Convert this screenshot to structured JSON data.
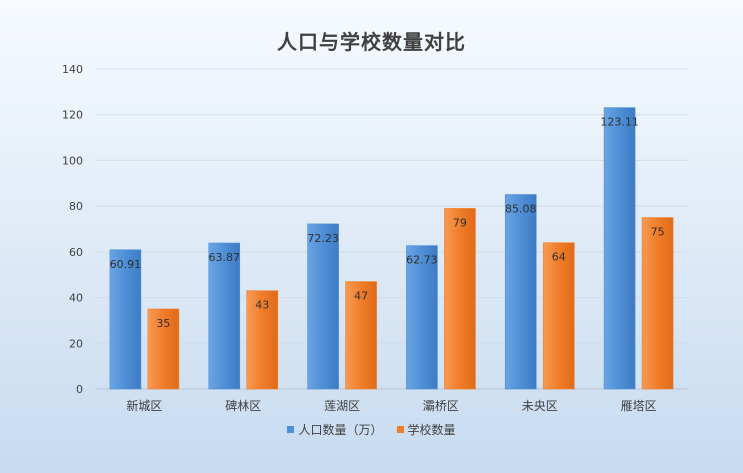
{
  "chart_data": {
    "type": "bar",
    "title": "人口与学校数量对比",
    "categories": [
      "新城区",
      "碑林区",
      "莲湖区",
      "灞桥区",
      "未央区",
      "雁塔区"
    ],
    "series": [
      {
        "name": "人口数量（万）",
        "values": [
          60.91,
          63.87,
          72.23,
          62.73,
          85.08,
          123.11
        ],
        "color": "#4f8fd6",
        "label_position": "inside-top"
      },
      {
        "name": "学校数量",
        "values": [
          35,
          43,
          47,
          79,
          64,
          75
        ],
        "color": "#f07d2a",
        "label_position": "inside-top"
      }
    ],
    "ylim": [
      0,
      140
    ],
    "yticks": [
      0,
      20,
      40,
      60,
      80,
      100,
      120,
      140
    ],
    "grid": true,
    "legend_position": "bottom"
  }
}
